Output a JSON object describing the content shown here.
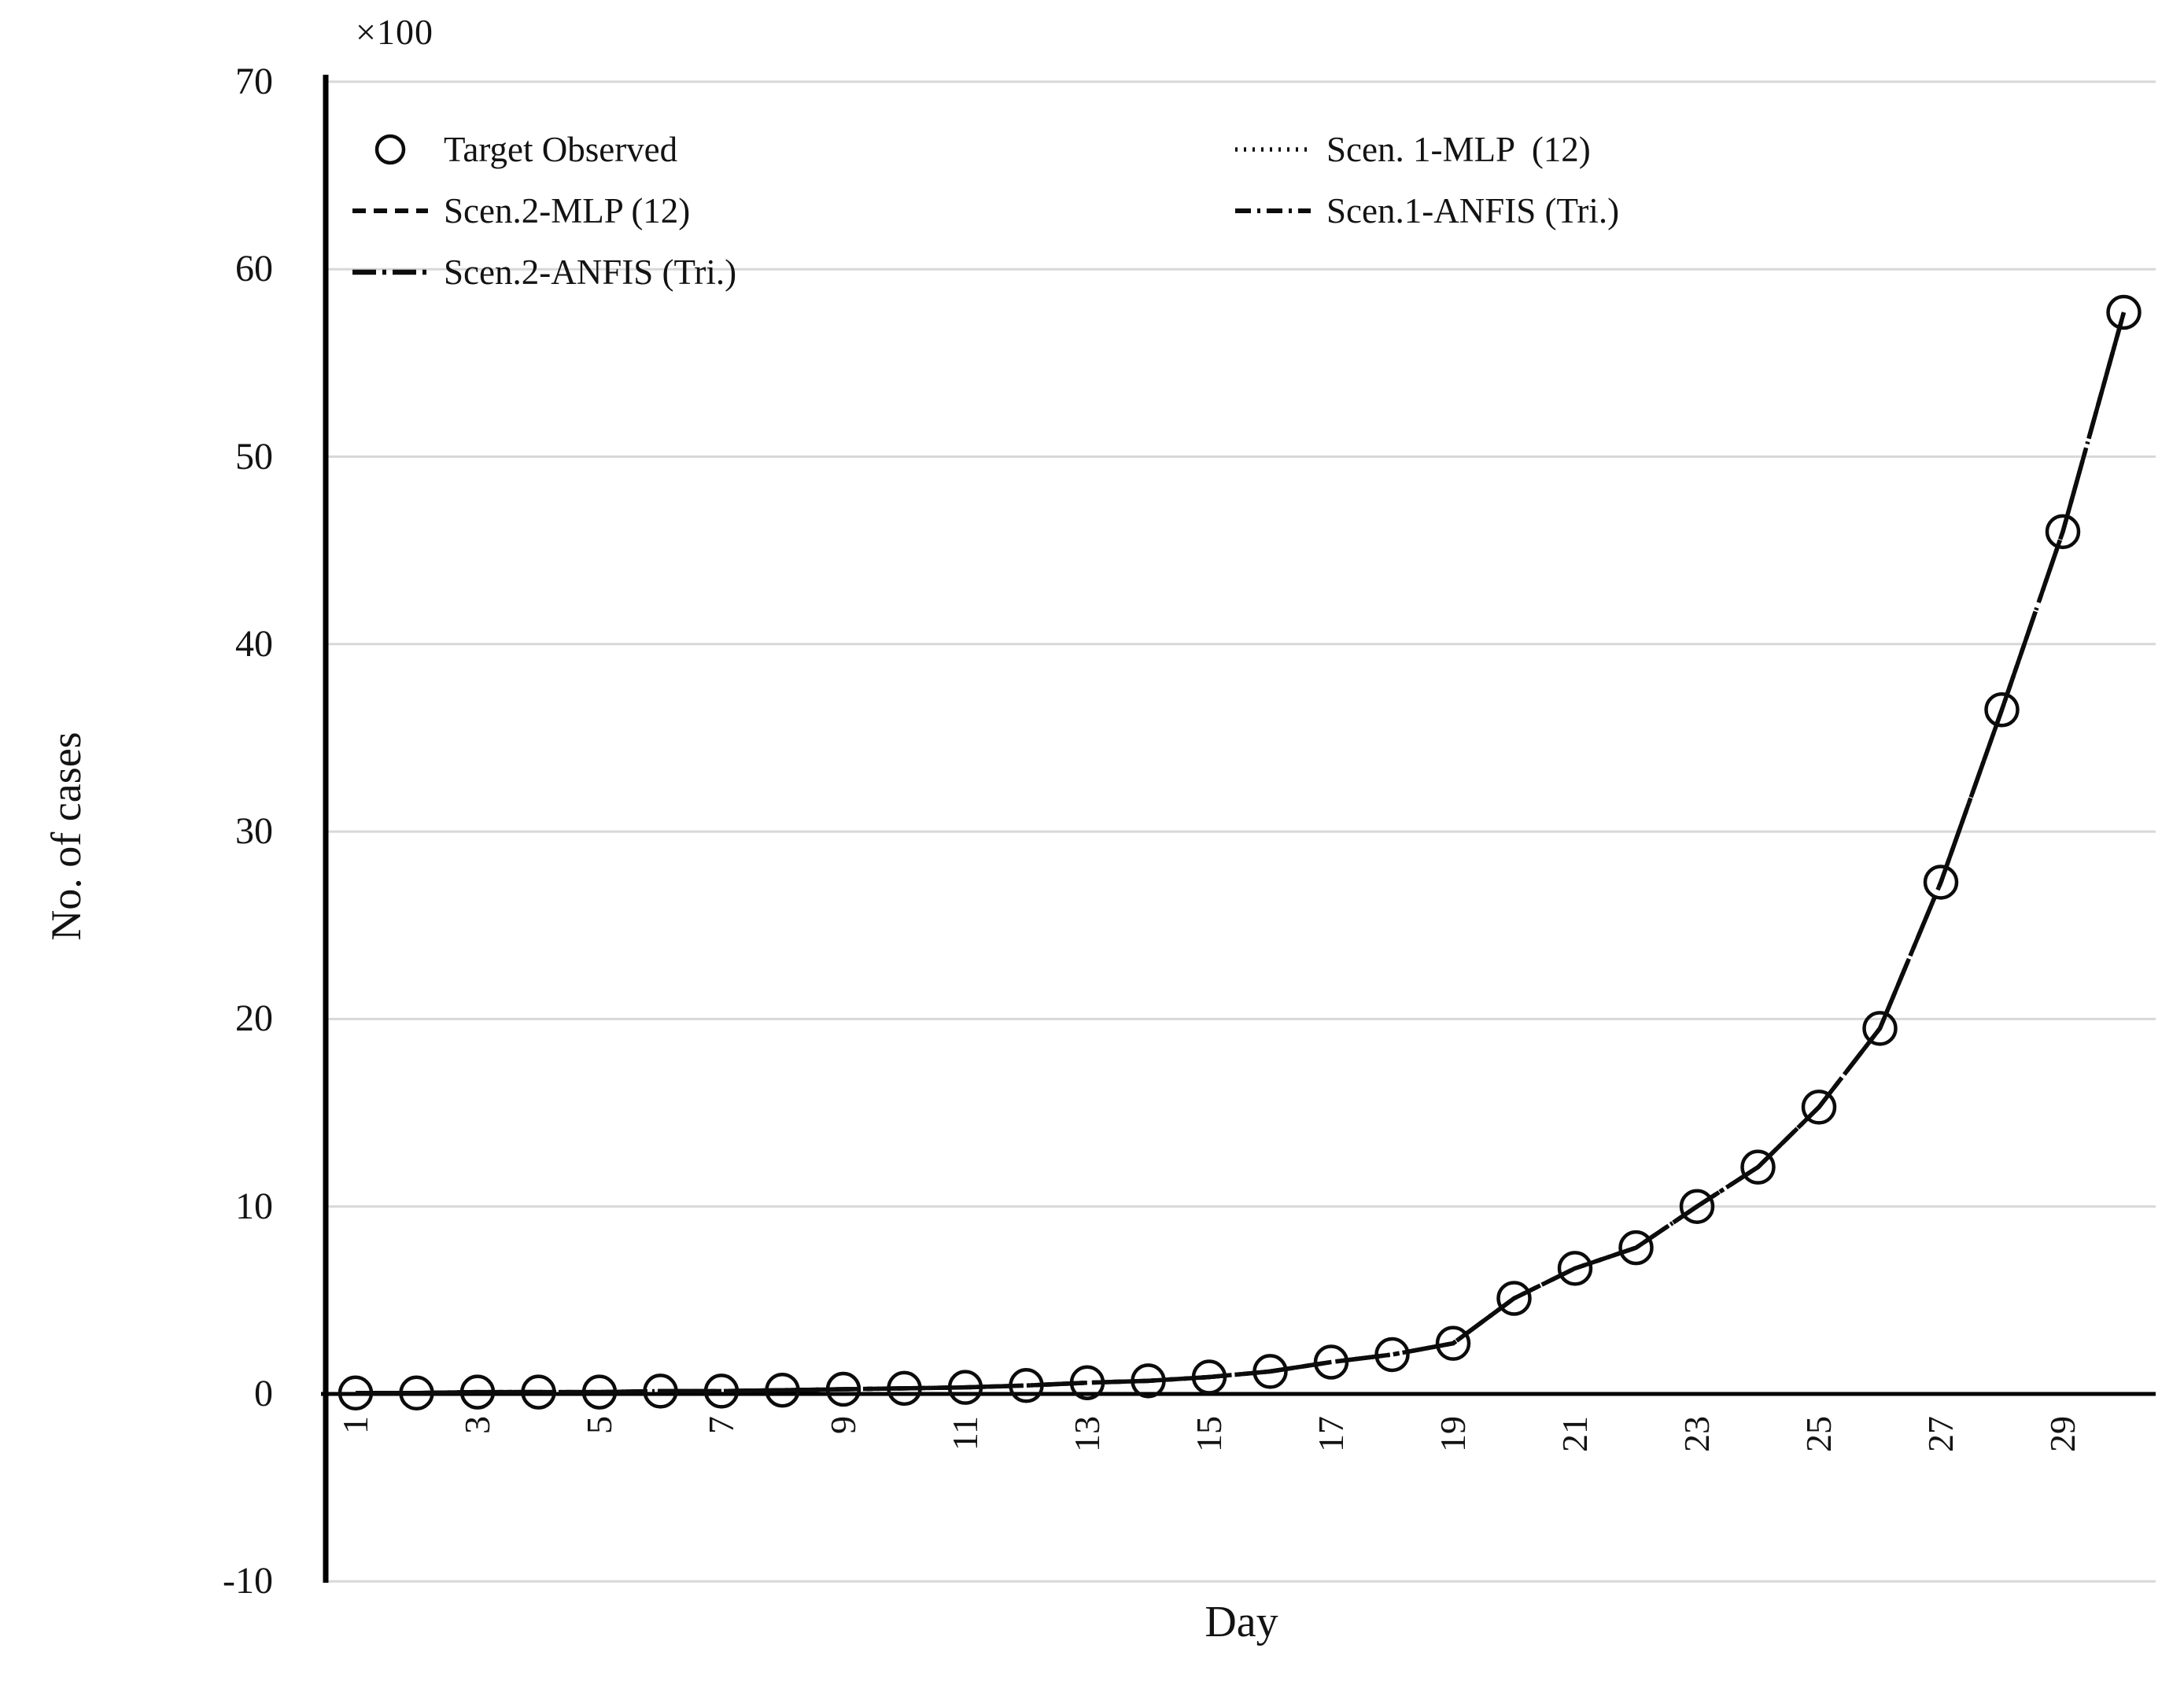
{
  "figure": {
    "axis_multiplier": "×100",
    "background_color": "#ffffff",
    "text_color": "#131313",
    "gridline_color": "#d8d8d8",
    "series_color": "#0c0c0c"
  },
  "legend": {
    "position": "top-inside",
    "entries": [
      {
        "label": "Target Observed",
        "marker": "open-circle",
        "column": "left"
      },
      {
        "label": "Scen. 1-MLP  (12)",
        "marker": "dotted-line",
        "column": "right"
      },
      {
        "label": "Scen.2-MLP (12)",
        "marker": "dashed-line",
        "column": "left"
      },
      {
        "label": "Scen.1-ANFIS (Tri.)",
        "marker": "dash-dot-line",
        "column": "right"
      },
      {
        "label": "Scen.2-ANFIS (Tri.)",
        "marker": "long-dash-dot-line",
        "column": "left"
      }
    ]
  },
  "chart_data": {
    "type": "line",
    "xlabel": "Day",
    "ylabel": "No. of cases",
    "y_unit_note": "×100",
    "x": [
      1,
      2,
      3,
      4,
      5,
      6,
      7,
      8,
      9,
      10,
      11,
      12,
      13,
      14,
      15,
      16,
      17,
      18,
      19,
      20,
      21,
      22,
      23,
      24,
      25,
      26,
      27,
      28,
      29,
      30
    ],
    "x_tick_labels": [
      1,
      3,
      5,
      7,
      9,
      11,
      13,
      15,
      17,
      19,
      21,
      23,
      25,
      27,
      29
    ],
    "y_ticks": [
      70,
      60,
      50,
      40,
      30,
      20,
      10,
      0,
      -10
    ],
    "ylim": [
      -10,
      70
    ],
    "grid": "horizontal-only",
    "legend_position": "top-inside-two-columns",
    "series": [
      {
        "name": "Target Observed",
        "style": "circle-markers",
        "values": [
          0.05,
          0.05,
          0.1,
          0.1,
          0.1,
          0.15,
          0.15,
          0.2,
          0.25,
          0.3,
          0.35,
          0.45,
          0.6,
          0.7,
          0.9,
          1.2,
          1.7,
          2.1,
          2.7,
          5.1,
          6.7,
          7.8,
          10,
          12.1,
          15.3,
          19.5,
          27.3,
          36.5,
          46,
          57.7
        ]
      },
      {
        "name": "Scen. 1-MLP (12)",
        "style": "dotted",
        "values": [
          0.05,
          0.05,
          0.1,
          0.1,
          0.1,
          0.15,
          0.15,
          0.2,
          0.25,
          0.3,
          0.35,
          0.45,
          0.6,
          0.7,
          0.9,
          1.2,
          1.7,
          2.1,
          2.7,
          5.1,
          6.7,
          7.8,
          10,
          12.1,
          15.3,
          19.5,
          27.3,
          36.5,
          46,
          57.7
        ]
      },
      {
        "name": "Scen.2-MLP (12)",
        "style": "dashed",
        "values": [
          0.05,
          0.05,
          0.1,
          0.1,
          0.1,
          0.15,
          0.15,
          0.2,
          0.25,
          0.3,
          0.35,
          0.45,
          0.6,
          0.7,
          0.9,
          1.2,
          1.7,
          2.1,
          2.7,
          5.1,
          6.7,
          7.8,
          10,
          12.1,
          15.3,
          19.5,
          27.3,
          36.5,
          46,
          57.7
        ]
      },
      {
        "name": "Scen.1-ANFIS (Tri.)",
        "style": "dash-dot",
        "values": [
          0.05,
          0.05,
          0.1,
          0.1,
          0.1,
          0.15,
          0.15,
          0.2,
          0.25,
          0.3,
          0.35,
          0.45,
          0.6,
          0.7,
          0.9,
          1.2,
          1.7,
          2.1,
          2.7,
          5.1,
          6.7,
          7.8,
          10,
          12.1,
          15.3,
          19.5,
          27.3,
          36.5,
          46,
          57.7
        ]
      },
      {
        "name": "Scen.2-ANFIS (Tri.)",
        "style": "long-dash-dot",
        "values": [
          0.05,
          0.05,
          0.1,
          0.1,
          0.1,
          0.15,
          0.15,
          0.2,
          0.25,
          0.3,
          0.35,
          0.45,
          0.6,
          0.7,
          0.9,
          1.2,
          1.7,
          2.1,
          2.7,
          5.1,
          6.7,
          7.8,
          10,
          12.1,
          15.3,
          19.5,
          27.3,
          36.5,
          46,
          57.7
        ]
      }
    ],
    "note": "All four scenario model curves visually overlap the observed points, forming one dark composite curve."
  }
}
